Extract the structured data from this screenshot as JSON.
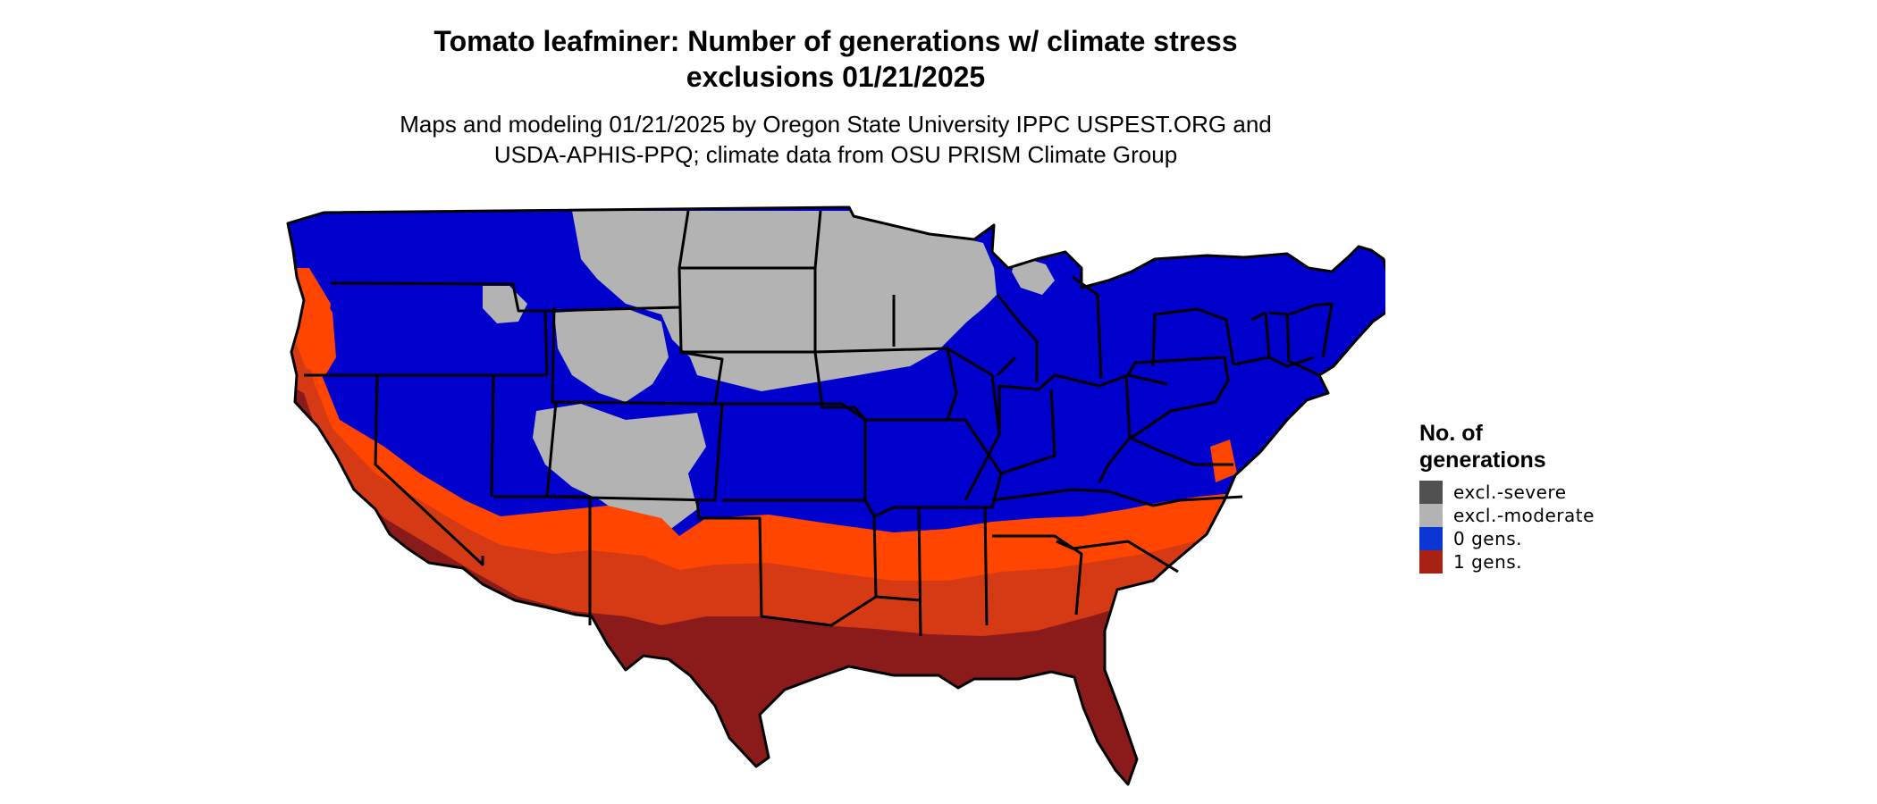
{
  "title": {
    "line1": "Tomato leafminer: Number of generations w/ climate stress",
    "line2": "exclusions 01/21/2025"
  },
  "subtitle": {
    "line1": "Maps and modeling 01/21/2025 by Oregon State University IPPC USPEST.ORG and",
    "line2": "USDA-APHIS-PPQ; climate data from OSU PRISM Climate Group"
  },
  "legend": {
    "title_line1": "No. of",
    "title_line2": "generations",
    "items": [
      {
        "label": "excl.-severe",
        "color": "#505050"
      },
      {
        "label": "excl.-moderate",
        "color": "#b3b3b3"
      },
      {
        "label": "0 gens.",
        "color": "#0a36d6"
      },
      {
        "label": "1 gens.",
        "color": "#a82214"
      }
    ]
  },
  "map_colors": {
    "zero_gens_blue": "#0000cc",
    "moderate_exclusion_gray": "#b3b3b3",
    "one_gen_orange": "#ff4500",
    "one_gen_mid": "#d63a14",
    "one_gen_dark": "#8b1a1a",
    "state_border": "#000000"
  }
}
